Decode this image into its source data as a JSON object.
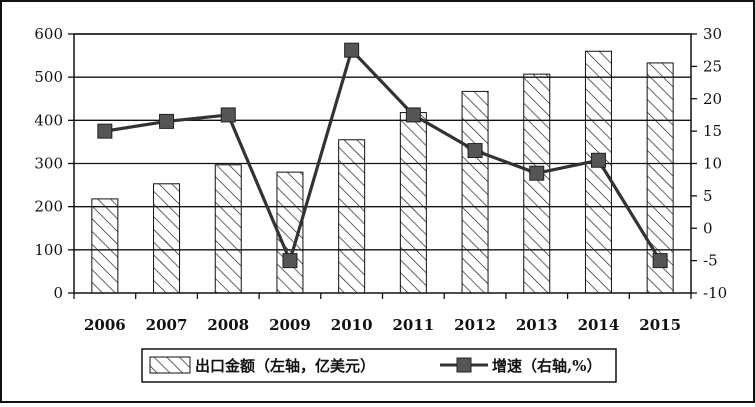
{
  "chart_data": {
    "type": "bar",
    "title": "",
    "categories": [
      "2006",
      "2007",
      "2008",
      "2009",
      "2010",
      "2011",
      "2012",
      "2013",
      "2014",
      "2015"
    ],
    "series": [
      {
        "name": "出口金额（左轴，亿美元）",
        "type": "bar",
        "axis": "left",
        "pattern": "diagonal-hatch",
        "values": [
          218,
          253,
          297,
          280,
          355,
          418,
          467,
          507,
          560,
          533
        ]
      },
      {
        "name": "增速（右轴,%）",
        "type": "line",
        "axis": "right",
        "marker": "square",
        "values": [
          15,
          16.5,
          17.5,
          -5,
          27.5,
          17.5,
          12,
          8.5,
          10.5,
          -5
        ]
      }
    ],
    "left_axis": {
      "min": 0,
      "max": 600,
      "ticks": [
        0,
        100,
        200,
        300,
        400,
        500,
        600
      ]
    },
    "right_axis": {
      "min": -10,
      "max": 30,
      "ticks": [
        -10,
        -5,
        0,
        5,
        10,
        15,
        20,
        25,
        30
      ]
    },
    "grid": "horizontal",
    "legend": "bottom"
  }
}
